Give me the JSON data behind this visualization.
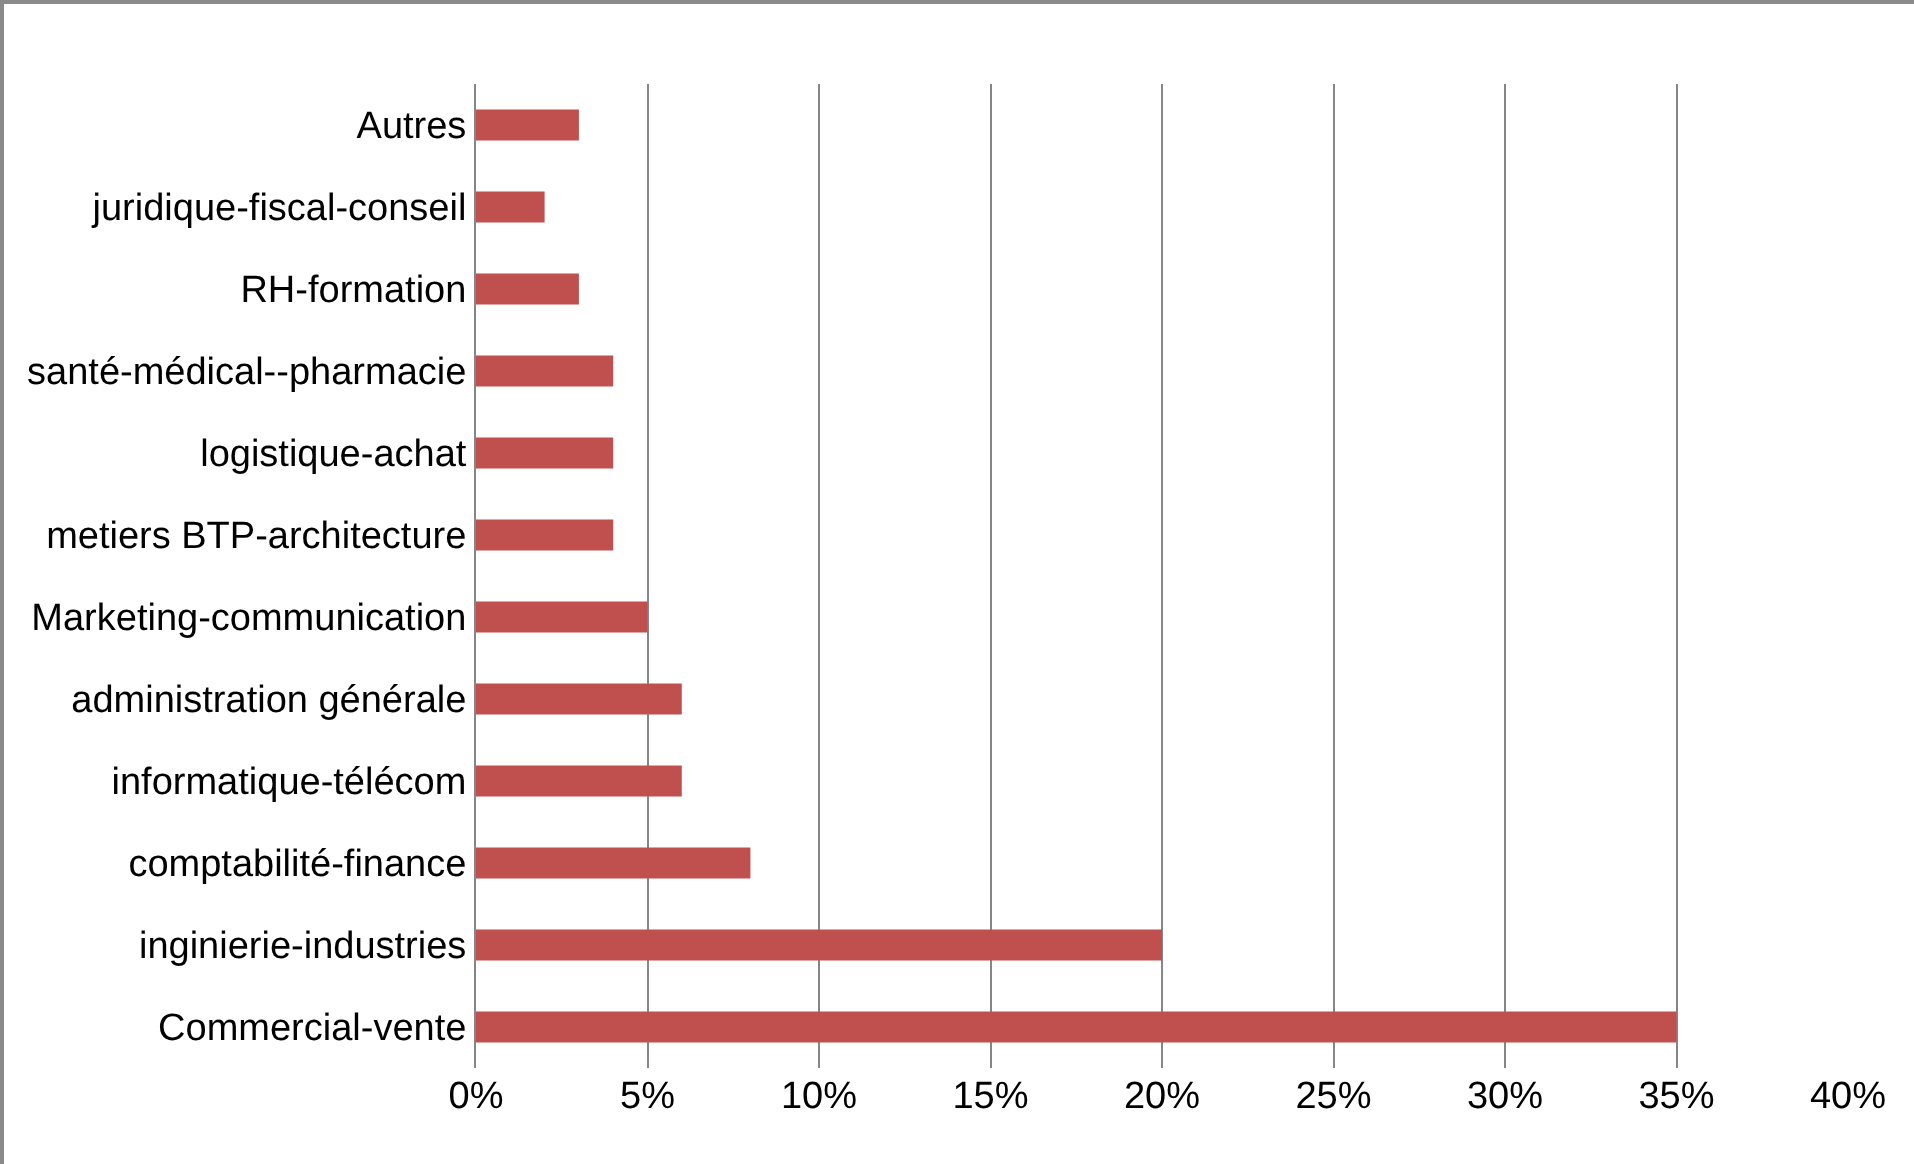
{
  "chart_data": {
    "type": "bar",
    "orientation": "horizontal",
    "categories": [
      "Autres",
      "juridique-fiscal-conseil",
      "RH-formation",
      "santé-médical--pharmacie",
      "logistique-achat",
      "metiers BTP-architecture",
      "Marketing-communication",
      "administration générale",
      "informatique-télécom",
      "comptabilité-finance",
      "inginierie-industries",
      "Commercial-vente"
    ],
    "values": [
      3,
      2,
      3,
      4,
      4,
      4,
      5,
      6,
      6,
      8,
      20,
      35
    ],
    "color": "#c0504d",
    "xlim": [
      0,
      40
    ],
    "xticks": [
      {
        "value": 0,
        "label": "0%"
      },
      {
        "value": 5,
        "label": "5%"
      },
      {
        "value": 10,
        "label": "10%"
      },
      {
        "value": 15,
        "label": "15%"
      },
      {
        "value": 20,
        "label": "20%"
      },
      {
        "value": 25,
        "label": "25%"
      },
      {
        "value": 30,
        "label": "30%"
      },
      {
        "value": 35,
        "label": "35%"
      },
      {
        "value": 40,
        "label": "40%"
      }
    ],
    "grid": "x",
    "legend": false
  }
}
